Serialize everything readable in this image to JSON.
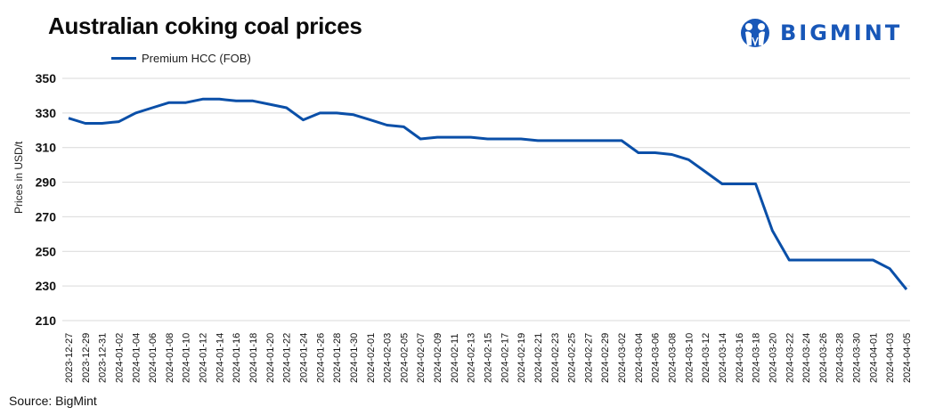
{
  "header": {
    "title": "Australian coking coal prices",
    "logo_text": "BIGMINT",
    "logo_icon": "bigmint-people-icon"
  },
  "footer": {
    "source": "Source: BigMint"
  },
  "colors": {
    "series": "#0a4fa8",
    "grid": "#d9d9d9",
    "logo": "#1857b8"
  },
  "chart_data": {
    "type": "line",
    "title": "Australian coking coal prices",
    "xlabel": "",
    "ylabel": "Prices in USD/t",
    "ylim": [
      210,
      350
    ],
    "yticks": [
      210,
      230,
      250,
      270,
      290,
      310,
      330,
      350
    ],
    "grid": true,
    "legend_position": "top-left",
    "x": [
      "2023-12-27",
      "2023-12-29",
      "2023-12-31",
      "2024-01-02",
      "2024-01-04",
      "2024-01-06",
      "2024-01-08",
      "2024-01-10",
      "2024-01-12",
      "2024-01-14",
      "2024-01-16",
      "2024-01-18",
      "2024-01-20",
      "2024-01-22",
      "2024-01-24",
      "2024-01-26",
      "2024-01-28",
      "2024-01-30",
      "2024-02-01",
      "2024-02-03",
      "2024-02-05",
      "2024-02-07",
      "2024-02-09",
      "2024-02-11",
      "2024-02-13",
      "2024-02-15",
      "2024-02-17",
      "2024-02-19",
      "2024-02-21",
      "2024-02-23",
      "2024-02-25",
      "2024-02-27",
      "2024-02-29",
      "2024-03-02",
      "2024-03-04",
      "2024-03-06",
      "2024-03-08",
      "2024-03-10",
      "2024-03-12",
      "2024-03-14",
      "2024-03-16",
      "2024-03-18",
      "2024-03-20",
      "2024-03-22",
      "2024-03-24",
      "2024-03-26",
      "2024-03-28",
      "2024-03-30",
      "2024-04-01",
      "2024-04-03",
      "2024-04-05"
    ],
    "series": [
      {
        "name": "Premium HCC (FOB)",
        "values": [
          327,
          324,
          324,
          325,
          330,
          333,
          336,
          336,
          338,
          338,
          337,
          337,
          335,
          333,
          326,
          330,
          330,
          329,
          326,
          323,
          322,
          315,
          316,
          316,
          316,
          315,
          315,
          315,
          314,
          314,
          314,
          314,
          314,
          314,
          307,
          307,
          306,
          303,
          296,
          289,
          289,
          289,
          262,
          245,
          245,
          245,
          245,
          245,
          245,
          240,
          228
        ]
      }
    ]
  }
}
